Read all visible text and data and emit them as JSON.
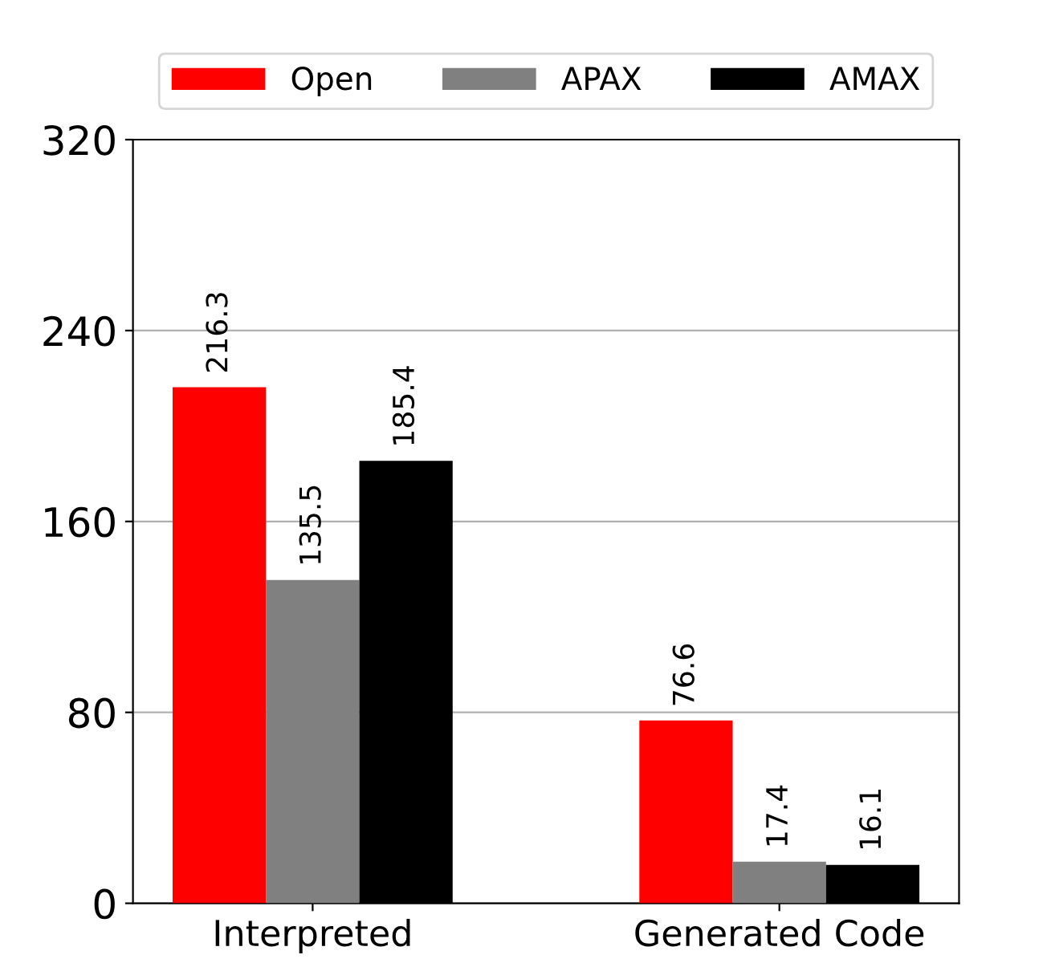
{
  "chart_data": {
    "type": "bar",
    "categories": [
      "Interpreted",
      "Generated Code"
    ],
    "series": [
      {
        "name": "Open",
        "color": "#ff0000",
        "values": [
          216.3,
          76.6
        ]
      },
      {
        "name": "APAX",
        "color": "#808080",
        "values": [
          135.5,
          17.4
        ]
      },
      {
        "name": "AMAX",
        "color": "#000000",
        "values": [
          185.4,
          16.1
        ]
      }
    ],
    "ylim": [
      0,
      320
    ],
    "yticks": [
      0,
      80,
      160,
      240,
      320
    ],
    "grid": "y",
    "legend": "top",
    "data_labels": true
  }
}
